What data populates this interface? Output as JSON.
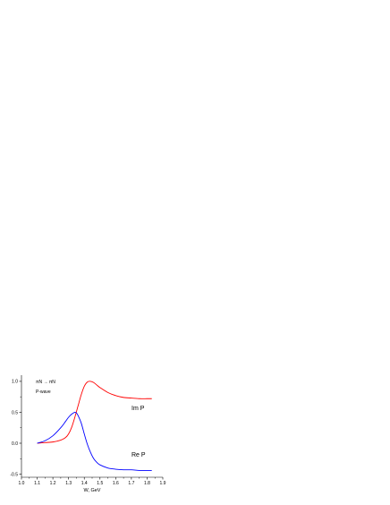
{
  "chart_data": {
    "type": "line",
    "title": "",
    "xlabel": "W, GeV",
    "ylabel": "",
    "xlim": [
      1.0,
      1.9
    ],
    "ylim": [
      -0.55,
      1.1
    ],
    "x_ticks": [
      "1.0",
      "1.1",
      "1.2",
      "1.3",
      "1.4",
      "1.5",
      "1.6",
      "1.7",
      "1.8",
      "1.9"
    ],
    "y_ticks": [
      "-0.5",
      "0.0",
      "0.5",
      "1.0"
    ],
    "grid": false,
    "annotations": {
      "reaction": "πN → πN",
      "wave": "P-wave"
    },
    "series": [
      {
        "name": "Im P",
        "color": "#ff0000",
        "x": [
          1.1,
          1.15,
          1.2,
          1.25,
          1.28,
          1.3,
          1.32,
          1.34,
          1.36,
          1.38,
          1.4,
          1.42,
          1.44,
          1.46,
          1.48,
          1.5,
          1.55,
          1.6,
          1.65,
          1.7,
          1.75,
          1.8,
          1.83
        ],
        "values": [
          0.0,
          0.01,
          0.02,
          0.05,
          0.09,
          0.15,
          0.26,
          0.42,
          0.6,
          0.78,
          0.92,
          0.99,
          1.0,
          0.98,
          0.94,
          0.9,
          0.82,
          0.77,
          0.74,
          0.73,
          0.72,
          0.72,
          0.72
        ]
      },
      {
        "name": "Re P",
        "color": "#0000ff",
        "x": [
          1.1,
          1.15,
          1.2,
          1.25,
          1.28,
          1.3,
          1.32,
          1.34,
          1.35,
          1.36,
          1.38,
          1.4,
          1.42,
          1.44,
          1.46,
          1.48,
          1.5,
          1.55,
          1.6,
          1.65,
          1.7,
          1.75,
          1.8,
          1.83
        ],
        "values": [
          0.0,
          0.04,
          0.12,
          0.25,
          0.35,
          0.42,
          0.47,
          0.5,
          0.49,
          0.45,
          0.33,
          0.15,
          -0.02,
          -0.15,
          -0.25,
          -0.31,
          -0.35,
          -0.4,
          -0.42,
          -0.43,
          -0.43,
          -0.44,
          -0.44,
          -0.44
        ]
      }
    ]
  }
}
